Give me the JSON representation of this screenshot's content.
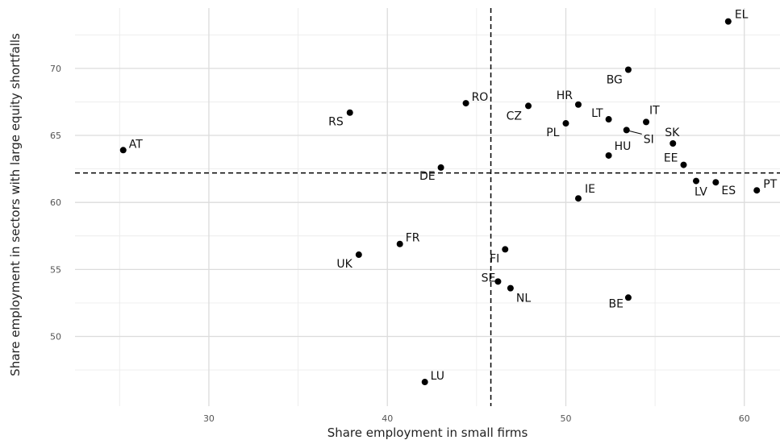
{
  "chart_data": {
    "type": "scatter",
    "xlabel": "Share employment in small firms",
    "ylabel": "Share employment in sectors with large equity shortfalls",
    "xlim": [
      22.5,
      62
    ],
    "ylim": [
      44.8,
      74.5
    ],
    "x_ticks": [
      30,
      40,
      50,
      60
    ],
    "y_ticks": [
      50,
      55,
      60,
      65,
      70
    ],
    "grid": true,
    "legend": "none",
    "reference_lines": {
      "x": 45.8,
      "y": 62.2
    },
    "point_color": "#000000",
    "points": [
      {
        "label": "EL",
        "x": 59.1,
        "y": 73.5
      },
      {
        "label": "BG",
        "x": 53.5,
        "y": 69.9
      },
      {
        "label": "RO",
        "x": 44.4,
        "y": 67.4
      },
      {
        "label": "CZ",
        "x": 47.9,
        "y": 67.2
      },
      {
        "label": "HR",
        "x": 50.7,
        "y": 67.3
      },
      {
        "label": "RS",
        "x": 37.9,
        "y": 66.7
      },
      {
        "label": "LT",
        "x": 52.4,
        "y": 66.2
      },
      {
        "label": "IT",
        "x": 54.5,
        "y": 66.0
      },
      {
        "label": "PL",
        "x": 50.0,
        "y": 65.9
      },
      {
        "label": "SI",
        "x": 53.4,
        "y": 65.4
      },
      {
        "label": "AT",
        "x": 25.2,
        "y": 63.9
      },
      {
        "label": "SK",
        "x": 56.0,
        "y": 64.4
      },
      {
        "label": "HU",
        "x": 52.4,
        "y": 63.5
      },
      {
        "label": "EE",
        "x": 56.6,
        "y": 62.8
      },
      {
        "label": "DE",
        "x": 43.0,
        "y": 62.6
      },
      {
        "label": "LV",
        "x": 57.3,
        "y": 61.6
      },
      {
        "label": "ES",
        "x": 58.4,
        "y": 61.5
      },
      {
        "label": "PT",
        "x": 60.7,
        "y": 60.9
      },
      {
        "label": "IE",
        "x": 50.7,
        "y": 60.3
      },
      {
        "label": "FR",
        "x": 40.7,
        "y": 56.9
      },
      {
        "label": "FI",
        "x": 46.6,
        "y": 56.5
      },
      {
        "label": "UK",
        "x": 38.4,
        "y": 56.1
      },
      {
        "label": "SE",
        "x": 46.2,
        "y": 54.1
      },
      {
        "label": "NL",
        "x": 46.9,
        "y": 53.6
      },
      {
        "label": "BE",
        "x": 53.5,
        "y": 52.9
      },
      {
        "label": "LU",
        "x": 42.1,
        "y": 46.6
      }
    ]
  }
}
